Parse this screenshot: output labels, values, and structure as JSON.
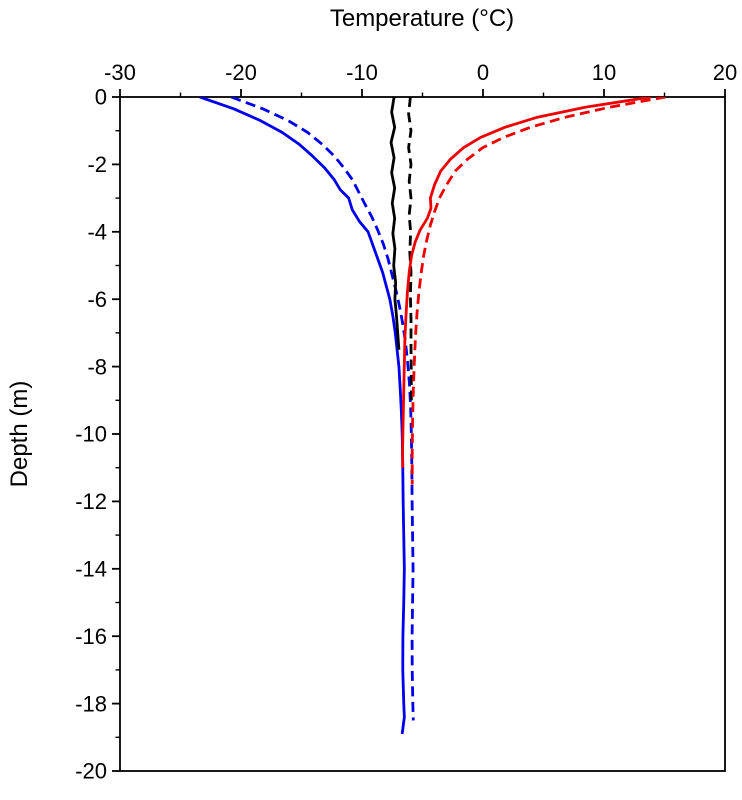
{
  "chart_data": {
    "type": "line",
    "title": "Temperature (°C)",
    "xlabel": "Temperature (°C)",
    "ylabel": "Depth (m)",
    "xlim": [
      -30,
      20
    ],
    "ylim": [
      -20,
      0
    ],
    "x_ticks": [
      -30,
      -20,
      -10,
      0,
      10,
      20
    ],
    "x_minor_ticks": [
      -25,
      -15,
      -5,
      5,
      15
    ],
    "y_ticks": [
      0,
      -2,
      -4,
      -6,
      -8,
      -10,
      -12,
      -14,
      -16,
      -18,
      -20
    ],
    "y_minor_ticks": [
      -1,
      -3,
      -5,
      -7,
      -9,
      -11,
      -13,
      -15,
      -17,
      -19
    ],
    "grid": false,
    "legend_position": "none",
    "axis_color": "#000000",
    "series": [
      {
        "name": "minimum-temperature-profile-solid",
        "color": "#0000ee",
        "dash": "solid",
        "points": [
          [
            -23.4,
            0
          ],
          [
            -20.6,
            -0.35
          ],
          [
            -18.4,
            -0.7
          ],
          [
            -16.6,
            -1.05
          ],
          [
            -15.2,
            -1.4
          ],
          [
            -14.1,
            -1.75
          ],
          [
            -13.1,
            -2.1
          ],
          [
            -12.3,
            -2.45
          ],
          [
            -11.8,
            -2.75
          ],
          [
            -11.1,
            -3.0
          ],
          [
            -10.8,
            -3.35
          ],
          [
            -10.2,
            -3.7
          ],
          [
            -9.5,
            -4.0
          ],
          [
            -9.1,
            -4.4
          ],
          [
            -8.7,
            -4.8
          ],
          [
            -8.3,
            -5.2
          ],
          [
            -8.0,
            -5.6
          ],
          [
            -7.7,
            -6.0
          ],
          [
            -7.45,
            -6.5
          ],
          [
            -7.25,
            -7.0
          ],
          [
            -7.1,
            -7.5
          ],
          [
            -6.95,
            -8.0
          ],
          [
            -6.85,
            -8.6
          ],
          [
            -6.75,
            -9.3
          ],
          [
            -6.68,
            -10
          ],
          [
            -6.63,
            -11
          ],
          [
            -6.6,
            -12
          ],
          [
            -6.55,
            -13
          ],
          [
            -6.5,
            -14
          ],
          [
            -6.55,
            -15
          ],
          [
            -6.62,
            -16
          ],
          [
            -6.63,
            -17
          ],
          [
            -6.55,
            -18
          ],
          [
            -6.5,
            -18.4
          ],
          [
            -6.68,
            -18.9
          ]
        ]
      },
      {
        "name": "minimum-temperature-profile-dashed",
        "color": "#0000ee",
        "dash": "dashed",
        "points": [
          [
            -20.8,
            0
          ],
          [
            -18.2,
            -0.35
          ],
          [
            -16.1,
            -0.7
          ],
          [
            -14.5,
            -1.05
          ],
          [
            -13.3,
            -1.4
          ],
          [
            -12.3,
            -1.75
          ],
          [
            -11.5,
            -2.1
          ],
          [
            -10.8,
            -2.45
          ],
          [
            -10.3,
            -2.8
          ],
          [
            -9.8,
            -3.15
          ],
          [
            -9.2,
            -3.55
          ],
          [
            -8.7,
            -3.95
          ],
          [
            -8.25,
            -4.35
          ],
          [
            -7.85,
            -4.8
          ],
          [
            -7.5,
            -5.3
          ],
          [
            -7.15,
            -5.8
          ],
          [
            -6.85,
            -6.3
          ],
          [
            -6.6,
            -6.8
          ],
          [
            -6.4,
            -7.3
          ],
          [
            -6.22,
            -7.9
          ],
          [
            -6.08,
            -8.5
          ],
          [
            -5.98,
            -9.2
          ],
          [
            -5.92,
            -10
          ],
          [
            -5.88,
            -11
          ],
          [
            -5.86,
            -12
          ],
          [
            -5.82,
            -13
          ],
          [
            -5.78,
            -14
          ],
          [
            -5.82,
            -15
          ],
          [
            -5.86,
            -16
          ],
          [
            -5.85,
            -17
          ],
          [
            -5.8,
            -18
          ],
          [
            -5.76,
            -18.5
          ]
        ]
      },
      {
        "name": "mean-temperature-profile-solid",
        "color": "#000000",
        "dash": "solid",
        "points": [
          [
            -7.35,
            0
          ],
          [
            -7.55,
            -0.45
          ],
          [
            -7.3,
            -0.9
          ],
          [
            -7.6,
            -1.35
          ],
          [
            -7.35,
            -1.8
          ],
          [
            -7.55,
            -2.25
          ],
          [
            -7.3,
            -2.7
          ],
          [
            -7.5,
            -3.15
          ],
          [
            -7.3,
            -3.6
          ],
          [
            -7.45,
            -4.05
          ],
          [
            -7.28,
            -4.5
          ],
          [
            -7.38,
            -5.0
          ],
          [
            -7.22,
            -5.5
          ],
          [
            -7.28,
            -6.0
          ],
          [
            -7.15,
            -6.5
          ],
          [
            -7.05,
            -7.0
          ],
          [
            -6.95,
            -7.5
          ]
        ]
      },
      {
        "name": "mean-temperature-profile-dashed",
        "color": "#000000",
        "dash": "dashed",
        "points": [
          [
            -6.0,
            0
          ],
          [
            -6.15,
            -0.5
          ],
          [
            -5.95,
            -1.0
          ],
          [
            -6.15,
            -1.5
          ],
          [
            -5.95,
            -2.0
          ],
          [
            -6.1,
            -2.5
          ],
          [
            -5.95,
            -3.0
          ],
          [
            -6.1,
            -3.5
          ],
          [
            -5.98,
            -4.0
          ],
          [
            -6.05,
            -4.6
          ],
          [
            -5.95,
            -5.2
          ],
          [
            -6.0,
            -5.9
          ],
          [
            -5.95,
            -6.6
          ],
          [
            -5.95,
            -7.4
          ],
          [
            -5.93,
            -8.2
          ],
          [
            -5.92,
            -9.0
          ]
        ]
      },
      {
        "name": "maximum-temperature-profile-solid",
        "color": "#ee0000",
        "dash": "solid",
        "points": [
          [
            13.9,
            0
          ],
          [
            8.5,
            -0.3
          ],
          [
            4.5,
            -0.6
          ],
          [
            1.8,
            -0.9
          ],
          [
            -0.2,
            -1.2
          ],
          [
            -1.6,
            -1.5
          ],
          [
            -2.7,
            -1.85
          ],
          [
            -3.5,
            -2.2
          ],
          [
            -4.0,
            -2.6
          ],
          [
            -4.35,
            -3.0
          ],
          [
            -4.3,
            -3.3
          ],
          [
            -4.6,
            -3.6
          ],
          [
            -5.2,
            -3.95
          ],
          [
            -5.6,
            -4.3
          ],
          [
            -5.9,
            -4.7
          ],
          [
            -6.1,
            -5.2
          ],
          [
            -6.25,
            -5.8
          ],
          [
            -6.35,
            -6.4
          ],
          [
            -6.45,
            -7.1
          ],
          [
            -6.5,
            -7.9
          ],
          [
            -6.55,
            -8.7
          ],
          [
            -6.6,
            -9.6
          ],
          [
            -6.65,
            -10.5
          ],
          [
            -6.63,
            -11
          ]
        ]
      },
      {
        "name": "maximum-temperature-profile-dashed",
        "color": "#ee0000",
        "dash": "dashed",
        "points": [
          [
            15.1,
            0
          ],
          [
            10.5,
            -0.3
          ],
          [
            6.8,
            -0.6
          ],
          [
            3.9,
            -0.9
          ],
          [
            1.7,
            -1.2
          ],
          [
            0.0,
            -1.5
          ],
          [
            -1.3,
            -1.85
          ],
          [
            -2.3,
            -2.2
          ],
          [
            -3.0,
            -2.6
          ],
          [
            -3.6,
            -3.0
          ],
          [
            -4.0,
            -3.4
          ],
          [
            -4.35,
            -3.8
          ],
          [
            -4.65,
            -4.25
          ],
          [
            -4.9,
            -4.7
          ],
          [
            -5.1,
            -5.2
          ],
          [
            -5.3,
            -5.8
          ],
          [
            -5.45,
            -6.4
          ],
          [
            -5.58,
            -7.1
          ],
          [
            -5.68,
            -7.9
          ],
          [
            -5.76,
            -8.7
          ],
          [
            -5.82,
            -9.6
          ],
          [
            -5.85,
            -10.5
          ],
          [
            -5.85,
            -11.5
          ]
        ]
      }
    ]
  }
}
